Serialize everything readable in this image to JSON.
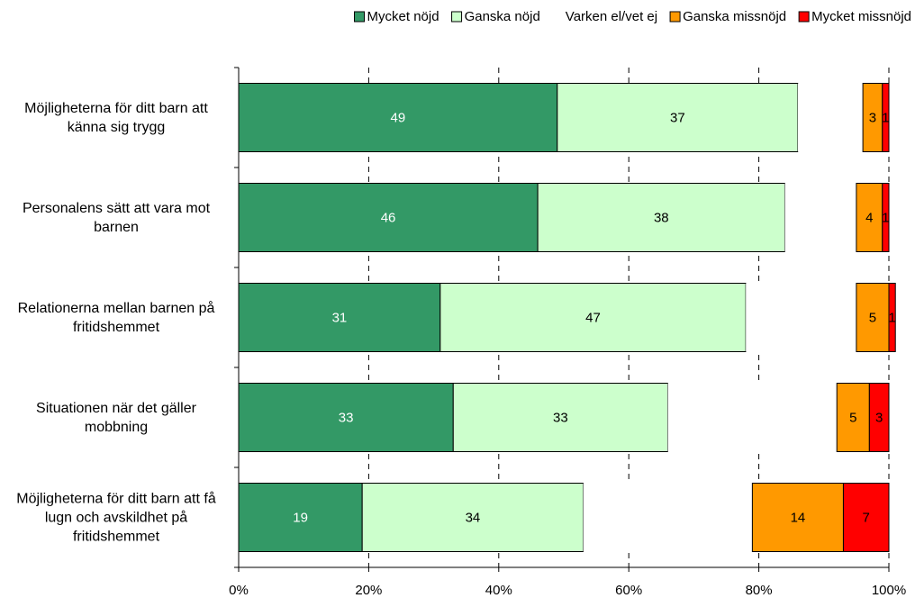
{
  "chart_data": {
    "type": "stacked-barh",
    "categories": [
      "Möjligheterna för ditt barn att känna sig trygg",
      "Personalens sätt att vara mot barnen",
      "Relationerna mellan barnen på fritidshemmet",
      "Situationen när det gäller mobbning",
      "Möjligheterna för ditt barn att få lugn och avskildhet på fritidshemmet"
    ],
    "series": [
      {
        "name": "Mycket nöjd",
        "color": "#339966",
        "label_color": "#ffffff",
        "values": [
          49,
          46,
          31,
          33,
          19
        ]
      },
      {
        "name": "Ganska nöjd",
        "color": "#ccffcc",
        "label_color": "#000000",
        "values": [
          37,
          38,
          47,
          33,
          34
        ]
      },
      {
        "name": "Varken el/vet ej",
        "color": "#ffffff",
        "data_labels": false,
        "values": [
          10,
          11,
          17,
          26,
          26
        ]
      },
      {
        "name": "Ganska missnöjd",
        "color": "#ff9900",
        "label_color": "#000000",
        "values": [
          3,
          4,
          5,
          5,
          14
        ]
      },
      {
        "name": "Mycket missnöjd",
        "color": "#ff0000",
        "label_color": "#000000",
        "values": [
          1,
          1,
          1,
          3,
          7
        ]
      }
    ],
    "xlim": [
      0,
      100
    ],
    "xticks": [
      {
        "value": 0,
        "label": "0%"
      },
      {
        "value": 20,
        "label": "20%"
      },
      {
        "value": 40,
        "label": "40%"
      },
      {
        "value": 60,
        "label": "60%"
      },
      {
        "value": 80,
        "label": "80%"
      },
      {
        "value": 100,
        "label": "100%"
      }
    ],
    "grid": true,
    "legend": "top"
  }
}
